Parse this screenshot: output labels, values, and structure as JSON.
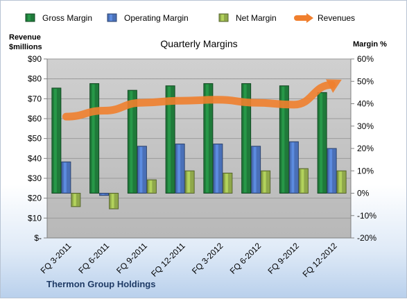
{
  "chart_data": {
    "type": "bar",
    "title": "Quarterly Margins",
    "left_axis_title": [
      "Revenue",
      "$millions"
    ],
    "right_axis_title": "Margin %",
    "footer": "Thermon Group Holdings",
    "categories": [
      "FQ 3-2011",
      "FQ 6-2011",
      "FQ 9-2011",
      "FQ 12-2011",
      "FQ 3-2012",
      "FQ 6-2012",
      "FQ 9-2012",
      "FQ 12-2012"
    ],
    "left_ticks": [
      "$-",
      "$10",
      "$20",
      "$30",
      "$40",
      "$50",
      "$60",
      "$70",
      "$80",
      "$90"
    ],
    "right_ticks": [
      "-20%",
      "-10%",
      "0%",
      "10%",
      "20%",
      "30%",
      "40%",
      "50%",
      "60%"
    ],
    "ylim_left": [
      0,
      90
    ],
    "ylim_right": [
      -20,
      60
    ],
    "legend": [
      "Gross Margin",
      "Operating Margin",
      "Net Margin",
      "Revenues"
    ],
    "legend_placement": "top",
    "series": [
      {
        "name": "Gross Margin",
        "axis": "right",
        "color": "#1f7a3a",
        "values": [
          47,
          49,
          46,
          48,
          49,
          49,
          48,
          45
        ]
      },
      {
        "name": "Operating Margin",
        "axis": "right",
        "color": "#4a70b8",
        "values": [
          14,
          -1,
          21,
          22,
          22,
          21,
          23,
          20
        ]
      },
      {
        "name": "Net Margin",
        "axis": "right",
        "color": "#8fa84a",
        "values": [
          -6,
          -7,
          6,
          10,
          9,
          10,
          11,
          10
        ]
      },
      {
        "name": "Revenues",
        "type": "line",
        "axis": "left",
        "color": "#f07f2e",
        "values": [
          61,
          64,
          68,
          69,
          69.5,
          68,
          67,
          77
        ]
      }
    ],
    "grid": true
  }
}
